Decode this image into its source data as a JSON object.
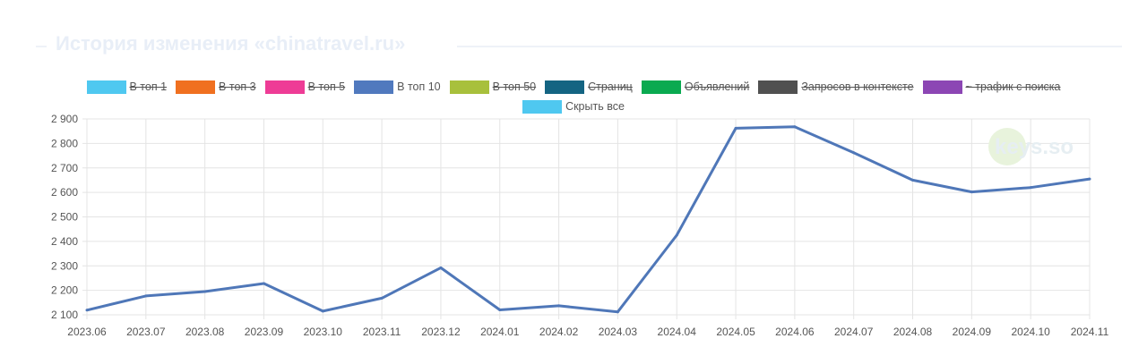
{
  "header": {
    "title": "История изменения «chinatravel.ru»"
  },
  "legend": {
    "items": [
      {
        "label": "В топ 1",
        "color": "#4fc8f0",
        "hidden": true
      },
      {
        "label": "В топ 3",
        "color": "#f07020",
        "hidden": true
      },
      {
        "label": "В топ 5",
        "color": "#ee3c96",
        "hidden": true
      },
      {
        "label": "В топ 10",
        "color": "#5079be",
        "hidden": false
      },
      {
        "label": "В топ 50",
        "color": "#a8c03c",
        "hidden": true
      },
      {
        "label": "Страниц",
        "color": "#146482",
        "hidden": true
      },
      {
        "label": "Объявлений",
        "color": "#0aaa50",
        "hidden": true
      },
      {
        "label": "Запросов в контексте",
        "color": "#505050",
        "hidden": true
      },
      {
        "label": "~ трафик с поиска",
        "color": "#8c46b4",
        "hidden": true
      }
    ],
    "hide_all": {
      "label": "Скрыть все",
      "color": "#4fc8f0"
    }
  },
  "watermark": {
    "text": "keys.so"
  },
  "chart_data": {
    "type": "line",
    "categories": [
      "2023.06",
      "2023.07",
      "2023.08",
      "2023.09",
      "2023.10",
      "2023.11",
      "2023.12",
      "2024.01",
      "2024.02",
      "2024.03",
      "2024.04",
      "2024.05",
      "2024.06",
      "2024.07",
      "2024.08",
      "2024.09",
      "2024.10",
      "2024.11"
    ],
    "series": [
      {
        "name": "В топ 10",
        "color": "#4f77b8",
        "values": [
          2119,
          2177,
          2195,
          2228,
          2115,
          2168,
          2292,
          2120,
          2137,
          2112,
          2425,
          2862,
          2868,
          2762,
          2650,
          2602,
          2620,
          2655
        ]
      }
    ],
    "ylim": [
      2100,
      2900
    ],
    "yticks": [
      2100,
      2200,
      2300,
      2400,
      2500,
      2600,
      2700,
      2800,
      2900
    ],
    "ytick_labels": [
      "2 100",
      "2 200",
      "2 300",
      "2 400",
      "2 500",
      "2 600",
      "2 700",
      "2 800",
      "2 900"
    ],
    "grid": true,
    "title": "",
    "xlabel": "",
    "ylabel": ""
  }
}
